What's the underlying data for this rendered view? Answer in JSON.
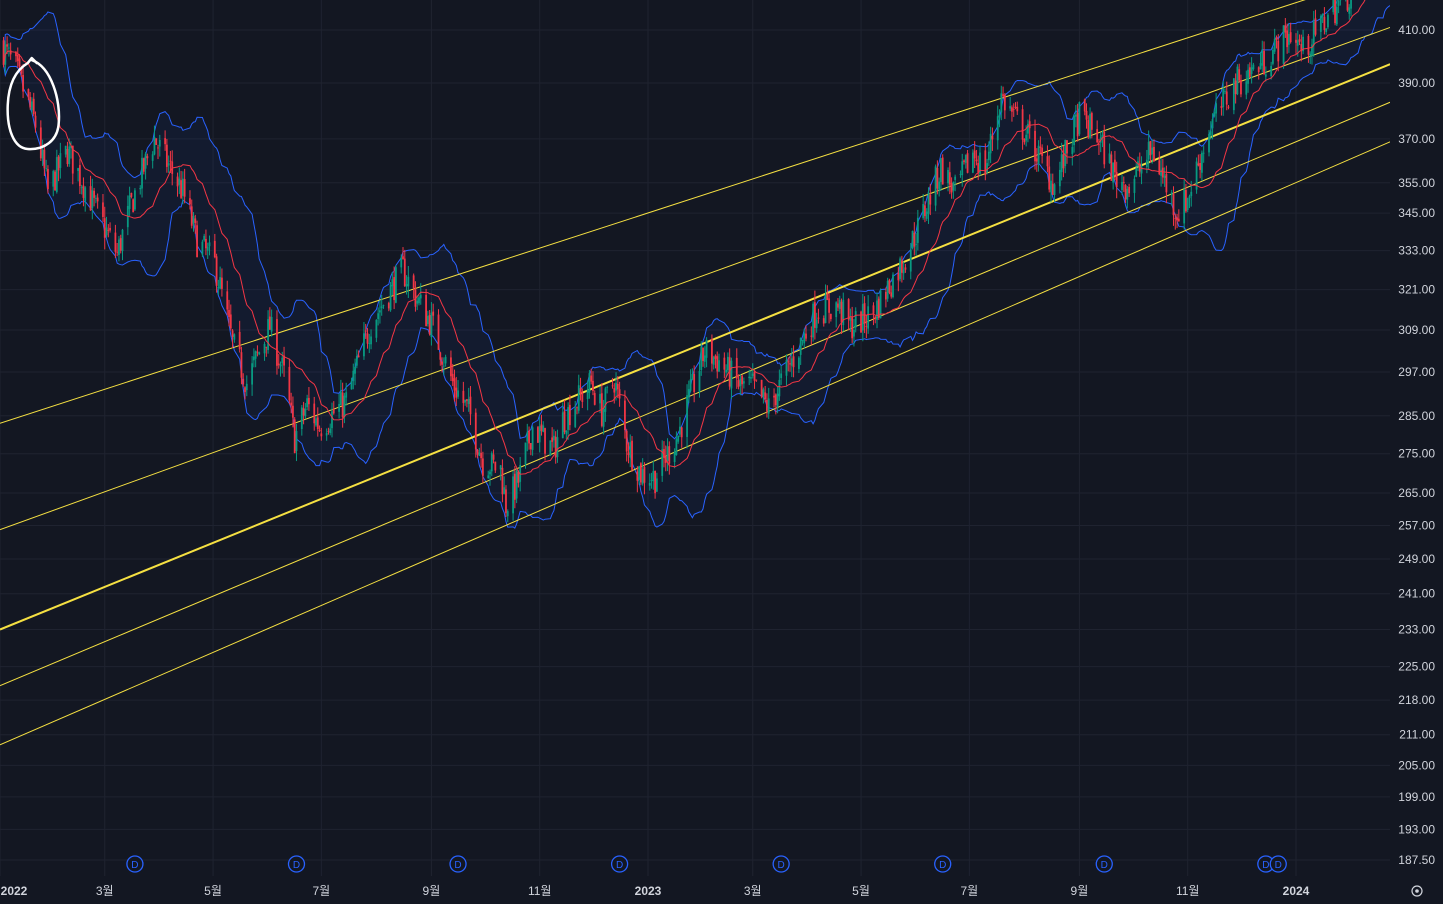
{
  "chart_data": {
    "type": "candlestick",
    "y_axis": {
      "scale": "log",
      "range": [
        183,
        425
      ],
      "tick_labels": [
        "410.00",
        "390.00",
        "370.00",
        "355.00",
        "345.00",
        "333.00",
        "321.00",
        "309.00",
        "297.00",
        "285.00",
        "275.00",
        "265.00",
        "257.00",
        "249.00",
        "241.00",
        "233.00",
        "225.00",
        "218.00",
        "211.00",
        "205.00",
        "199.00",
        "193.00",
        "187.50"
      ],
      "tick_values": [
        410,
        390,
        370,
        355,
        345,
        333,
        321,
        309,
        297,
        285,
        275,
        265,
        257,
        249,
        241,
        233,
        225,
        218,
        211,
        205,
        199,
        193,
        187.5
      ]
    },
    "x_axis": {
      "range": [
        "2022-01-01",
        "2024-02-23"
      ],
      "tick_labels": [
        "2022",
        "3월",
        "5월",
        "7월",
        "9월",
        "11월",
        "2023",
        "3월",
        "5월",
        "7월",
        "9월",
        "11월",
        "2024"
      ],
      "tick_dates": [
        "2022-01-01",
        "2022-03-01",
        "2022-05-01",
        "2022-07-01",
        "2022-09-01",
        "2022-11-01",
        "2023-01-01",
        "2023-03-01",
        "2023-05-01",
        "2023-07-01",
        "2023-09-01",
        "2023-11-01",
        "2024-01-01"
      ],
      "bold_labels": [
        "2022",
        "2023",
        "2024"
      ]
    },
    "grid": true,
    "price_anchors": [
      [
        "2022-01-01",
        405
      ],
      [
        "2022-01-10",
        395
      ],
      [
        "2022-01-21",
        375
      ],
      [
        "2022-01-28",
        352
      ],
      [
        "2022-02-08",
        366
      ],
      [
        "2022-02-24",
        346
      ],
      [
        "2022-03-08",
        332
      ],
      [
        "2022-03-16",
        348
      ],
      [
        "2022-03-29",
        370
      ],
      [
        "2022-04-05",
        362
      ],
      [
        "2022-04-14",
        352
      ],
      [
        "2022-04-22",
        336
      ],
      [
        "2022-05-02",
        329
      ],
      [
        "2022-05-12",
        305
      ],
      [
        "2022-05-20",
        294
      ],
      [
        "2022-06-02",
        310
      ],
      [
        "2022-06-10",
        296
      ],
      [
        "2022-06-16",
        279
      ],
      [
        "2022-06-23",
        288
      ],
      [
        "2022-06-30",
        282
      ],
      [
        "2022-07-15",
        289
      ],
      [
        "2022-07-29",
        311
      ],
      [
        "2022-08-16",
        327
      ],
      [
        "2022-08-24",
        318
      ],
      [
        "2022-09-01",
        311
      ],
      [
        "2022-09-13",
        294
      ],
      [
        "2022-09-23",
        285
      ],
      [
        "2022-09-30",
        273
      ],
      [
        "2022-10-10",
        271
      ],
      [
        "2022-10-13",
        262
      ],
      [
        "2022-10-20",
        268
      ],
      [
        "2022-10-28",
        282
      ],
      [
        "2022-11-09",
        276
      ],
      [
        "2022-11-14",
        284
      ],
      [
        "2022-11-30",
        294
      ],
      [
        "2022-12-06",
        286
      ],
      [
        "2022-12-13",
        295
      ],
      [
        "2022-12-20",
        278
      ],
      [
        "2022-12-28",
        270
      ],
      [
        "2023-01-05",
        269
      ],
      [
        "2023-01-18",
        280
      ],
      [
        "2023-02-02",
        303
      ],
      [
        "2023-02-10",
        300
      ],
      [
        "2023-02-22",
        293
      ],
      [
        "2023-03-01",
        293
      ],
      [
        "2023-03-10",
        287
      ],
      [
        "2023-03-15",
        292
      ],
      [
        "2023-03-28",
        305
      ],
      [
        "2023-04-06",
        315
      ],
      [
        "2023-04-18",
        316
      ],
      [
        "2023-04-25",
        310
      ],
      [
        "2023-05-08",
        314
      ],
      [
        "2023-05-25",
        330
      ],
      [
        "2023-06-02",
        340
      ],
      [
        "2023-06-15",
        360
      ],
      [
        "2023-06-23",
        352
      ],
      [
        "2023-07-03",
        365
      ],
      [
        "2023-07-10",
        360
      ],
      [
        "2023-07-19",
        385
      ],
      [
        "2023-07-27",
        377
      ],
      [
        "2023-08-02",
        372
      ],
      [
        "2023-08-18",
        354
      ],
      [
        "2023-09-01",
        378
      ],
      [
        "2023-09-12",
        370
      ],
      [
        "2023-09-21",
        357
      ],
      [
        "2023-09-29",
        354
      ],
      [
        "2023-10-12",
        366
      ],
      [
        "2023-10-26",
        345
      ],
      [
        "2023-11-01",
        350
      ],
      [
        "2023-11-14",
        375
      ],
      [
        "2023-11-28",
        390
      ],
      [
        "2023-12-14",
        398
      ],
      [
        "2023-12-29",
        409
      ],
      [
        "2024-01-05",
        402
      ],
      [
        "2024-01-22",
        418
      ],
      [
        "2024-02-09",
        430
      ],
      [
        "2024-02-23",
        432
      ]
    ],
    "series": [
      {
        "kind": "candles",
        "up_color": "#089981",
        "down_color": "#f23645"
      },
      {
        "kind": "moving-average",
        "length": 20,
        "color": "#f23645"
      },
      {
        "kind": "bollinger-bands",
        "length": 20,
        "mult": 2,
        "color": "#2962ff",
        "fill": "rgba(41,98,255,0.06)"
      }
    ],
    "channel_lines": {
      "color": "#f5e042",
      "start_date": "2022-01-01",
      "end_date": "2024-02-23",
      "lines": [
        {
          "start": 283,
          "end": 433,
          "emphasis": false
        },
        {
          "start": 256,
          "end": 411,
          "emphasis": false
        },
        {
          "start": 233,
          "end": 397,
          "emphasis": true
        },
        {
          "start": 221,
          "end": 383,
          "emphasis": false
        },
        {
          "start": 209,
          "end": 369,
          "emphasis": false
        }
      ]
    },
    "dividend_markers": {
      "label": "D",
      "color": "#2962ff",
      "dates": [
        "2022-03-18",
        "2022-06-17",
        "2022-09-16",
        "2022-12-16",
        "2023-03-17",
        "2023-06-16",
        "2023-09-15",
        "2023-12-15",
        "2023-12-22"
      ]
    },
    "annotation": {
      "kind": "freehand-circle",
      "date": "2022-01-20",
      "price": 382,
      "color": "#ffffff"
    },
    "settings_icon": "gear-icon"
  }
}
